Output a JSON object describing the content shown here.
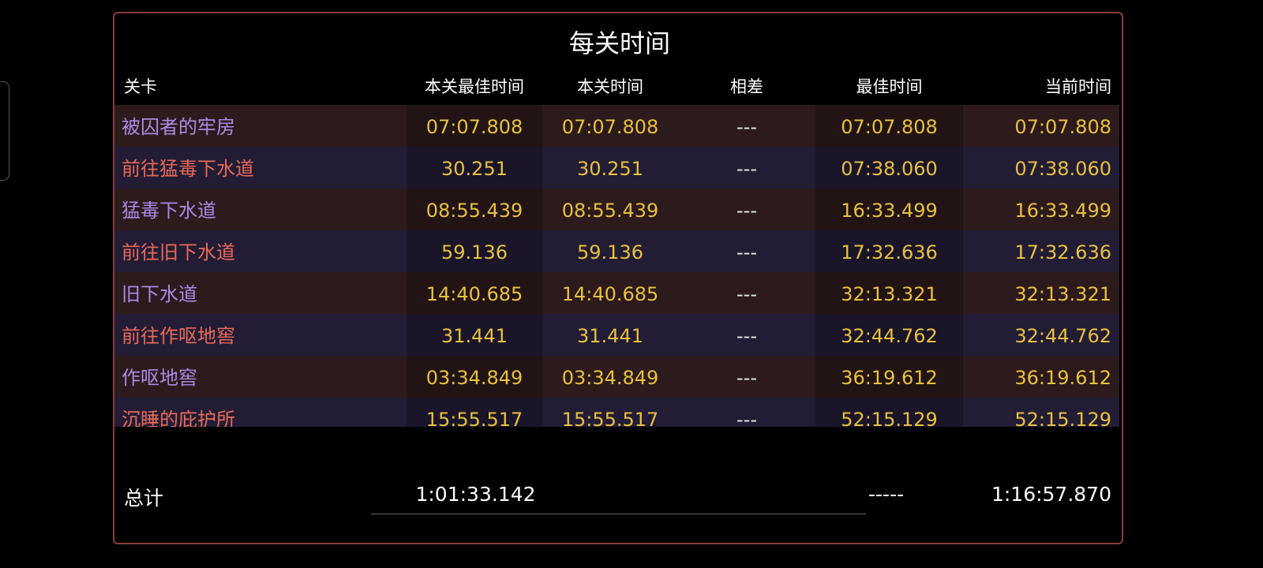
{
  "header": {
    "title": "每关时间"
  },
  "table": {
    "columns": [
      "关卡",
      "本关最佳时间",
      "本关时间",
      "相差",
      "最佳时间",
      "当前时间"
    ],
    "rows": [
      [
        "被囚者的牢房",
        "07:07.808",
        "07:07.808",
        "---",
        "07:07.808",
        "07:07.808"
      ],
      [
        "前往猛毒下水道",
        "30.251",
        "30.251",
        "---",
        "07:38.060",
        "07:38.060"
      ],
      [
        "猛毒下水道",
        "08:55.439",
        "08:55.439",
        "---",
        "16:33.499",
        "16:33.499"
      ],
      [
        "前往旧下水道",
        "59.136",
        "59.136",
        "---",
        "17:32.636",
        "17:32.636"
      ],
      [
        "旧下水道",
        "14:40.685",
        "14:40.685",
        "---",
        "32:13.321",
        "32:13.321"
      ],
      [
        "前往作呕地窖",
        "31.441",
        "31.441",
        "---",
        "32:44.762",
        "32:44.762"
      ],
      [
        "作呕地窖",
        "03:34.849",
        "03:34.849",
        "---",
        "36:19.612",
        "36:19.612"
      ],
      [
        "沉睡的庇护所",
        "15:55.517",
        "15:55.517",
        "---",
        "52:15.129",
        "52:15.129"
      ]
    ]
  },
  "total": {
    "label": "总计",
    "best_sum": "1:01:33.142",
    "diff": "-----",
    "current": "1:16:57.870"
  }
}
